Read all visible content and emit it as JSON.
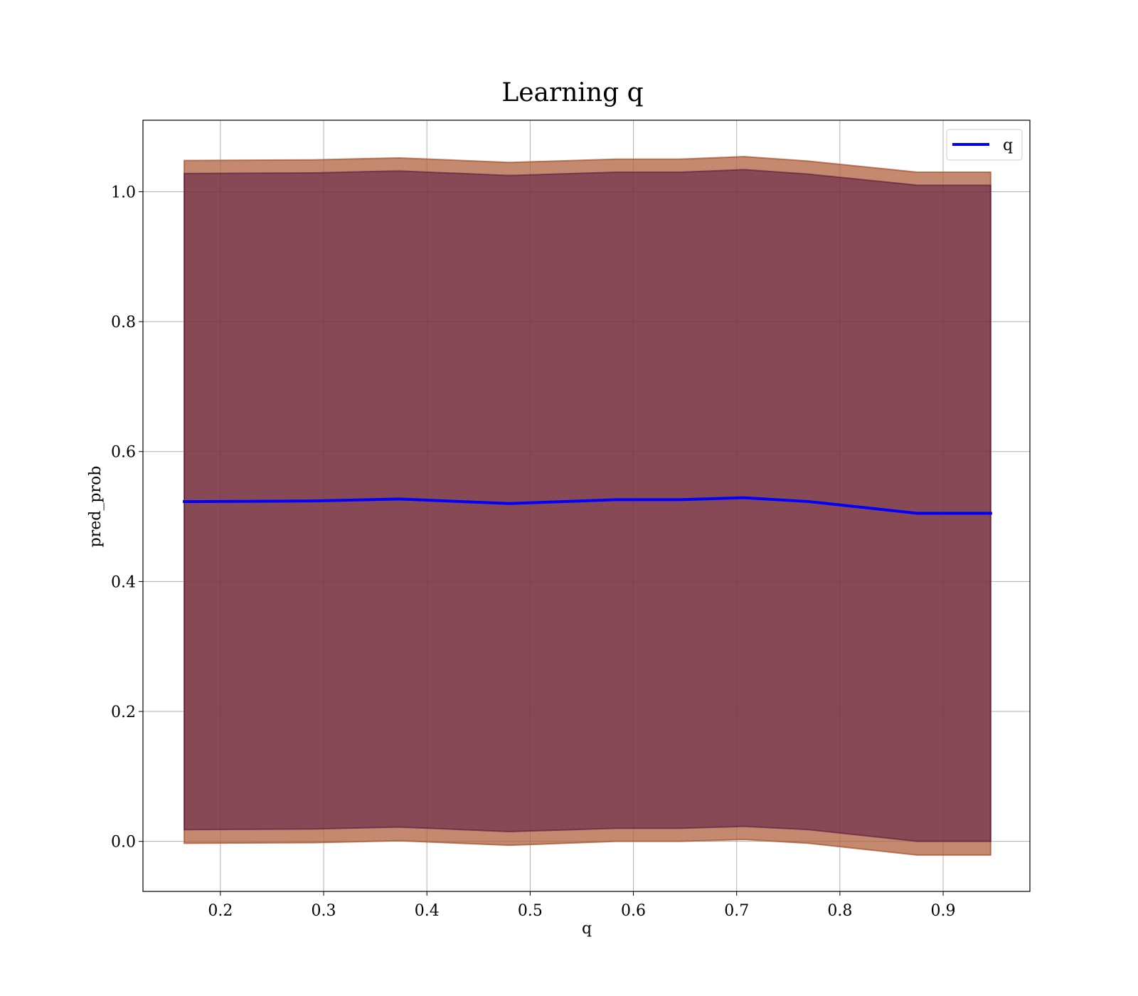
{
  "chart_data": {
    "type": "area",
    "title": "Learning q",
    "xlabel": "q",
    "ylabel": "pred_prob",
    "xlim": [
      0.125,
      0.984
    ],
    "ylim": [
      -0.077,
      1.11
    ],
    "xticks": [
      0.2,
      0.3,
      0.4,
      0.5,
      0.6,
      0.7,
      0.8,
      0.9
    ],
    "xtick_labels": [
      "0.2",
      "0.3",
      "0.4",
      "0.5",
      "0.6",
      "0.7",
      "0.8",
      "0.9"
    ],
    "yticks": [
      0.0,
      0.2,
      0.4,
      0.6,
      0.8,
      1.0
    ],
    "ytick_labels": [
      "0.0",
      "0.2",
      "0.4",
      "0.6",
      "0.8",
      "1.0"
    ],
    "grid": true,
    "legend": {
      "position": "top-right",
      "entries": [
        "q"
      ]
    },
    "x": [
      0.165,
      0.29,
      0.373,
      0.48,
      0.583,
      0.645,
      0.707,
      0.77,
      0.875,
      0.946
    ],
    "series": [
      {
        "name": "q",
        "kind": "line",
        "color": "#0000ff",
        "values": [
          0.523,
          0.524,
          0.527,
          0.52,
          0.526,
          0.526,
          0.529,
          0.523,
          0.505,
          0.505
        ]
      },
      {
        "kind": "band",
        "color": "#ff9999",
        "upper": [
          1.048,
          1.049,
          1.052,
          1.045,
          1.05,
          1.05,
          1.054,
          1.047,
          1.03,
          1.03
        ],
        "lower": [
          -0.003,
          -0.002,
          0.001,
          -0.006,
          0.0,
          0.0,
          0.003,
          -0.003,
          -0.021,
          -0.021
        ]
      },
      {
        "kind": "band",
        "color": "#8b4513",
        "upper": [
          1.048,
          1.049,
          1.052,
          1.045,
          1.05,
          1.05,
          1.054,
          1.047,
          1.03,
          1.03
        ],
        "lower": [
          -0.003,
          -0.002,
          0.001,
          -0.006,
          0.0,
          0.0,
          0.003,
          -0.003,
          -0.021,
          -0.021
        ]
      },
      {
        "kind": "band",
        "color": "#4b0a3c",
        "upper": [
          1.028,
          1.029,
          1.032,
          1.025,
          1.03,
          1.03,
          1.034,
          1.027,
          1.01,
          1.01
        ],
        "lower": [
          0.018,
          0.019,
          0.022,
          0.015,
          0.02,
          0.02,
          0.023,
          0.018,
          0.0,
          0.0
        ]
      }
    ]
  }
}
